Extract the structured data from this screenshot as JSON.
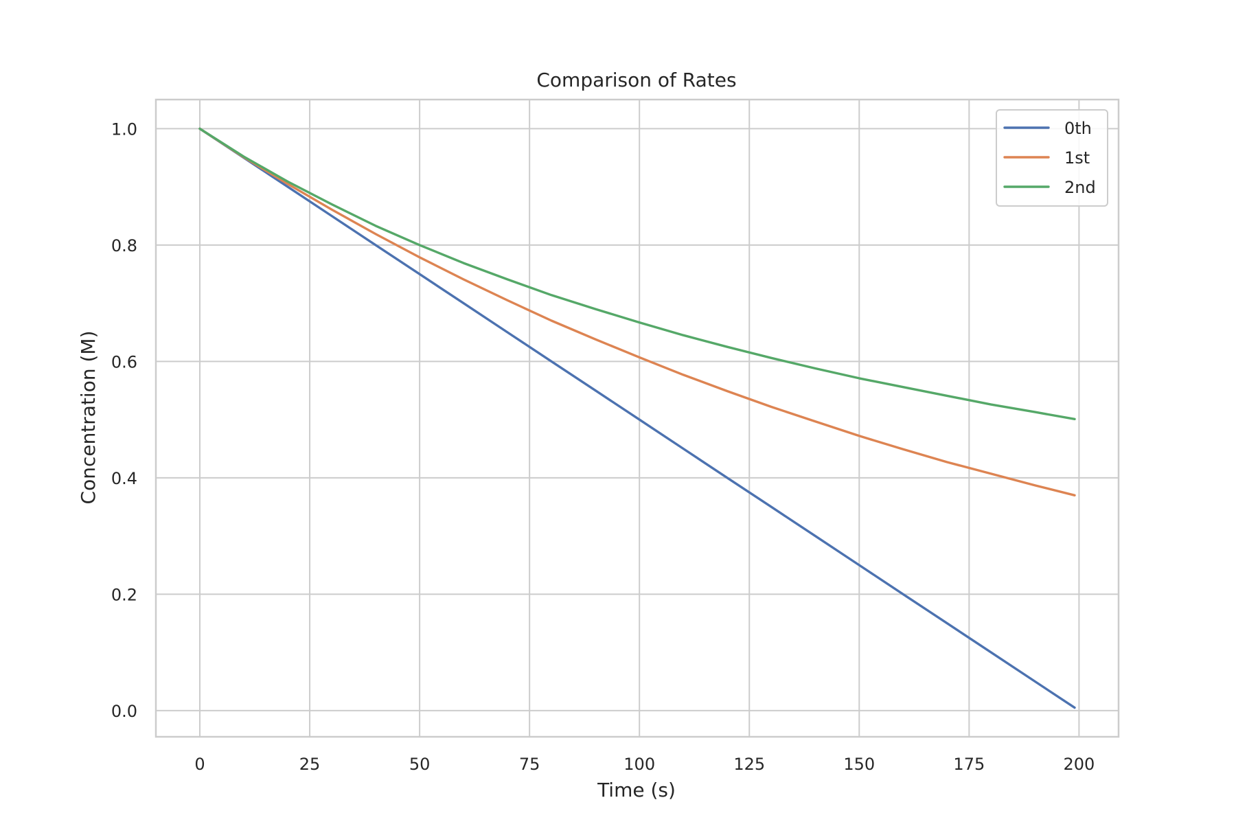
{
  "chart_data": {
    "type": "line",
    "title": "Comparison of Rates",
    "xlabel": "Time (s)",
    "ylabel": "Concentration (M)",
    "xlim": [
      -10,
      209
    ],
    "ylim": [
      -0.045,
      1.05
    ],
    "x_ticks": [
      0,
      25,
      50,
      75,
      100,
      125,
      150,
      175,
      200
    ],
    "y_ticks": [
      0.0,
      0.2,
      0.4,
      0.6,
      0.8,
      1.0
    ],
    "x_tick_labels": [
      "0",
      "25",
      "50",
      "75",
      "100",
      "125",
      "150",
      "175",
      "200"
    ],
    "y_tick_labels": [
      "0.0",
      "0.2",
      "0.4",
      "0.6",
      "0.8",
      "1.0"
    ],
    "grid": true,
    "legend": {
      "position": "top-right"
    },
    "x": [
      0,
      10,
      20,
      30,
      40,
      50,
      60,
      70,
      80,
      90,
      100,
      110,
      120,
      130,
      140,
      150,
      160,
      170,
      180,
      190,
      199
    ],
    "series": [
      {
        "name": "0th",
        "color": "#4c72b0",
        "values": [
          1.0,
          0.95,
          0.9,
          0.85,
          0.8,
          0.75,
          0.7,
          0.65,
          0.6,
          0.55,
          0.5,
          0.45,
          0.4,
          0.35,
          0.3,
          0.25,
          0.2,
          0.15,
          0.1,
          0.05,
          0.005
        ]
      },
      {
        "name": "1st",
        "color": "#dd8452",
        "values": [
          1.0,
          0.951,
          0.905,
          0.861,
          0.819,
          0.779,
          0.741,
          0.705,
          0.67,
          0.638,
          0.607,
          0.577,
          0.549,
          0.522,
          0.497,
          0.472,
          0.449,
          0.427,
          0.407,
          0.387,
          0.37
        ]
      },
      {
        "name": "2nd",
        "color": "#55a868",
        "values": [
          1.0,
          0.952,
          0.909,
          0.87,
          0.833,
          0.8,
          0.769,
          0.741,
          0.714,
          0.69,
          0.667,
          0.645,
          0.625,
          0.606,
          0.588,
          0.571,
          0.556,
          0.541,
          0.526,
          0.513,
          0.501
        ]
      }
    ]
  }
}
